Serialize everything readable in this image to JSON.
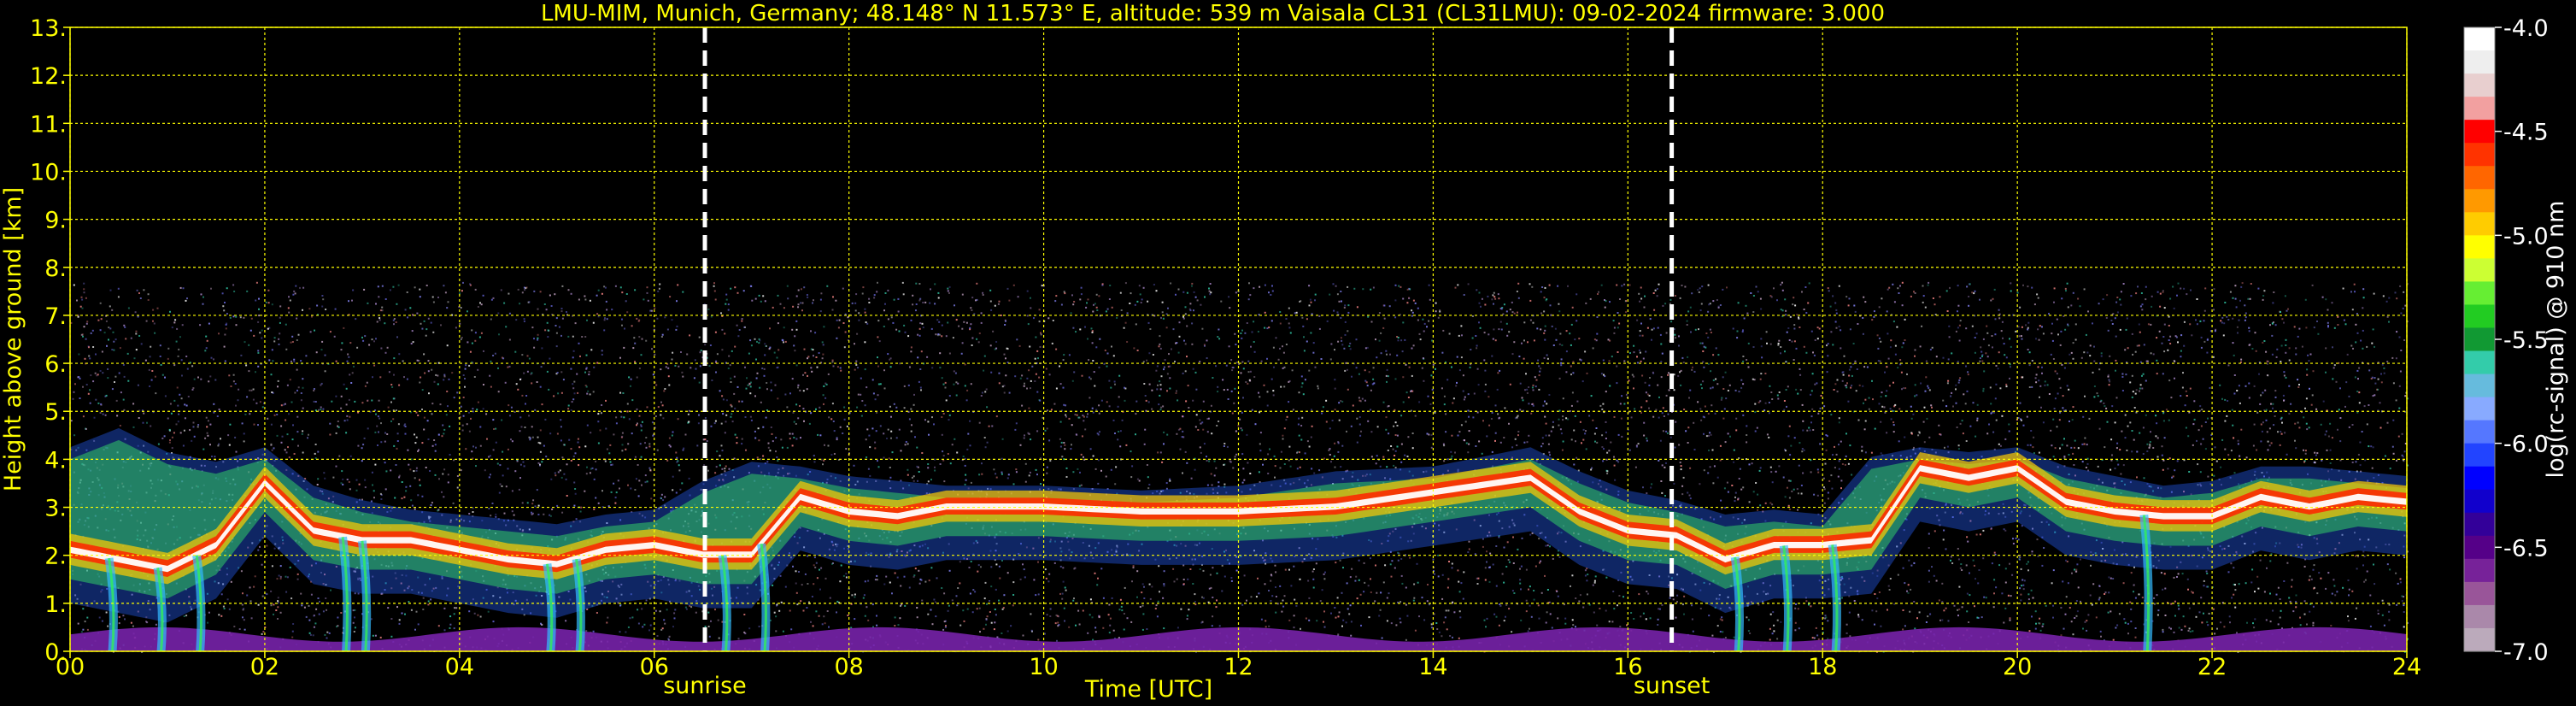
{
  "chart_data": {
    "type": "heatmap",
    "title": "LMU-MIM, Munich, Germany; 48.148° N 11.573° E, altitude: 539 m    Vaisala CL31 (CL31LMU): 09-02-2024    firmware: 3.000",
    "xlabel": "Time [UTC]",
    "ylabel": "Height above ground [km]",
    "xlim": [
      0,
      24
    ],
    "ylim": [
      0,
      13
    ],
    "x_ticks": [
      "00",
      "02",
      "04",
      "06",
      "08",
      "10",
      "12",
      "14",
      "16",
      "18",
      "20",
      "22",
      "24"
    ],
    "y_ticks": [
      "0.",
      "1.",
      "2.",
      "3.",
      "4.",
      "5.",
      "6.",
      "7.",
      "8.",
      "9.",
      "10.",
      "11.",
      "12.",
      "13."
    ],
    "grid": true,
    "markers": [
      {
        "label": "sunrise",
        "x": 6.52
      },
      {
        "label": "sunset",
        "x": 16.45
      }
    ],
    "colorbar": {
      "label": "log(rc-signal) @ 910 nm",
      "range": [
        -7.0,
        -4.0
      ],
      "ticks": [
        "-4.0",
        "-4.5",
        "-5.0",
        "-5.5",
        "-6.0",
        "-6.5",
        "-7.0"
      ],
      "colors": [
        "#ffffff",
        "#eeeeee",
        "#e8cfcf",
        "#f2a0a0",
        "#ff0000",
        "#ff3300",
        "#ff6600",
        "#ff9900",
        "#ffcc00",
        "#ffff00",
        "#ccff33",
        "#66ee33",
        "#22cc22",
        "#119933",
        "#33ccaa",
        "#66bbdd",
        "#88aaff",
        "#5577ff",
        "#2244ff",
        "#0000ff",
        "#1100cc",
        "#330099",
        "#550088",
        "#772299",
        "#995599",
        "#aa88aa",
        "#bbaabb"
      ]
    },
    "series": [
      {
        "name": "",
        "values": [
          {
            "t": 0.0,
            "top": 3.9,
            "core": 2.1
          },
          {
            "t": 0.5,
            "top": 4.3,
            "core": 1.9
          },
          {
            "t": 1.0,
            "top": 3.8,
            "core": 1.7
          },
          {
            "t": 1.5,
            "top": 3.6,
            "core": 2.2
          },
          {
            "t": 2.0,
            "top": 3.9,
            "core": 3.5
          },
          {
            "t": 2.5,
            "top": 3.1,
            "core": 2.5
          },
          {
            "t": 3.0,
            "top": 2.8,
            "core": 2.3
          },
          {
            "t": 3.5,
            "top": 2.6,
            "core": 2.3
          },
          {
            "t": 4.0,
            "top": 2.5,
            "core": 2.1
          },
          {
            "t": 4.5,
            "top": 2.4,
            "core": 1.9
          },
          {
            "t": 5.0,
            "top": 2.3,
            "core": 1.8
          },
          {
            "t": 5.5,
            "top": 2.5,
            "core": 2.1
          },
          {
            "t": 6.0,
            "top": 2.6,
            "core": 2.2
          },
          {
            "t": 6.5,
            "top": 3.2,
            "core": 2.0
          },
          {
            "t": 7.0,
            "top": 3.6,
            "core": 2.0
          },
          {
            "t": 7.5,
            "top": 3.5,
            "core": 3.2
          },
          {
            "t": 8.0,
            "top": 3.3,
            "core": 2.9
          },
          {
            "t": 8.5,
            "top": 3.2,
            "core": 2.8
          },
          {
            "t": 9.0,
            "top": 3.1,
            "core": 3.0
          },
          {
            "t": 10.0,
            "top": 3.1,
            "core": 3.0
          },
          {
            "t": 11.0,
            "top": 3.0,
            "core": 2.9
          },
          {
            "t": 12.0,
            "top": 3.1,
            "core": 2.9
          },
          {
            "t": 13.0,
            "top": 3.4,
            "core": 3.0
          },
          {
            "t": 14.0,
            "top": 3.5,
            "core": 3.3
          },
          {
            "t": 15.0,
            "top": 3.9,
            "core": 3.6
          },
          {
            "t": 15.5,
            "top": 3.4,
            "core": 2.9
          },
          {
            "t": 16.0,
            "top": 3.0,
            "core": 2.5
          },
          {
            "t": 16.5,
            "top": 2.8,
            "core": 2.4
          },
          {
            "t": 17.0,
            "top": 2.5,
            "core": 1.9
          },
          {
            "t": 17.5,
            "top": 2.6,
            "core": 2.2
          },
          {
            "t": 18.0,
            "top": 2.5,
            "core": 2.2
          },
          {
            "t": 18.5,
            "top": 3.7,
            "core": 2.3
          },
          {
            "t": 19.0,
            "top": 3.9,
            "core": 3.8
          },
          {
            "t": 19.5,
            "top": 3.8,
            "core": 3.6
          },
          {
            "t": 20.0,
            "top": 3.9,
            "core": 3.8
          },
          {
            "t": 20.5,
            "top": 3.5,
            "core": 3.1
          },
          {
            "t": 21.0,
            "top": 3.3,
            "core": 2.9
          },
          {
            "t": 21.5,
            "top": 3.1,
            "core": 2.8
          },
          {
            "t": 22.0,
            "top": 3.2,
            "core": 2.8
          },
          {
            "t": 22.5,
            "top": 3.5,
            "core": 3.2
          },
          {
            "t": 23.0,
            "top": 3.5,
            "core": 3.0
          },
          {
            "t": 23.5,
            "top": 3.4,
            "core": 3.2
          },
          {
            "t": 24.0,
            "top": 3.3,
            "core": 3.1
          }
        ]
      }
    ]
  }
}
